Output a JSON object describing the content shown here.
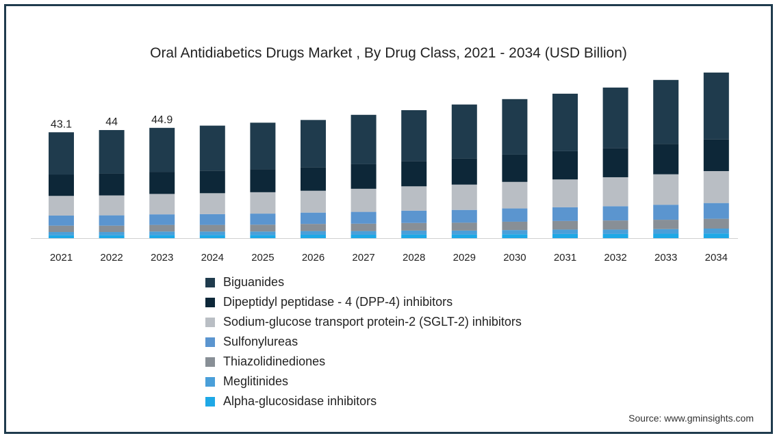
{
  "chart_data": {
    "type": "bar",
    "stacked": true,
    "title": "Oral Antidiabetics Drugs Market , By Drug Class, 2021 - 2034 (USD Billion)",
    "categories": [
      "2021",
      "2022",
      "2023",
      "2024",
      "2025",
      "2026",
      "2027",
      "2028",
      "2029",
      "2030",
      "2031",
      "2032",
      "2033",
      "2034"
    ],
    "totals": [
      43.1,
      44,
      44.9,
      45.8,
      47,
      48.1,
      50.2,
      52.1,
      54.4,
      56.6,
      58.8,
      61.3,
      64.4,
      67.4
    ],
    "total_labels": [
      "43.1",
      "44",
      "44.9",
      "",
      "",
      "",
      "",
      "",
      "",
      "",
      "",
      "",
      "",
      ""
    ],
    "series": [
      {
        "name": "Alpha-glucosidase inhibitors",
        "color": "#1ea8e6",
        "values": [
          1.2,
          1.2,
          1.3,
          1.3,
          1.3,
          1.4,
          1.4,
          1.5,
          1.5,
          1.6,
          1.7,
          1.7,
          1.8,
          1.9
        ]
      },
      {
        "name": "Meglitinides",
        "color": "#4a9fd9",
        "values": [
          1.3,
          1.3,
          1.4,
          1.4,
          1.4,
          1.5,
          1.5,
          1.6,
          1.6,
          1.7,
          1.8,
          1.8,
          1.9,
          2.0
        ]
      },
      {
        "name": "Thiazolidinediones",
        "color": "#888f96",
        "values": [
          2.6,
          2.6,
          2.7,
          2.7,
          2.8,
          2.9,
          3.0,
          3.1,
          3.2,
          3.4,
          3.5,
          3.7,
          3.8,
          4.0
        ]
      },
      {
        "name": "Sulfonylureas",
        "color": "#5b95cf",
        "values": [
          4.1,
          4.2,
          4.3,
          4.4,
          4.5,
          4.6,
          4.8,
          5.0,
          5.2,
          5.4,
          5.6,
          5.8,
          6.1,
          6.4
        ]
      },
      {
        "name": "Sodium-glucose transport protein-2 (SGLT-2) inhibitors",
        "color": "#b9bec4",
        "values": [
          8.0,
          8.1,
          8.3,
          8.5,
          8.7,
          8.9,
          9.4,
          9.9,
          10.3,
          10.8,
          11.3,
          11.8,
          12.4,
          13.0
        ]
      },
      {
        "name": "Dipeptidyl peptidase - 4 (DPP-4) inhibitors",
        "color": "#0d2738",
        "values": [
          8.7,
          8.9,
          9.0,
          9.2,
          9.4,
          9.6,
          10.0,
          10.3,
          10.7,
          11.1,
          11.5,
          11.9,
          12.4,
          12.9
        ]
      },
      {
        "name": "Biguanides",
        "color": "#1f3b4d",
        "values": [
          17.2,
          17.7,
          17.9,
          18.3,
          18.9,
          19.2,
          20.1,
          20.7,
          21.9,
          22.6,
          23.4,
          24.6,
          26.0,
          27.2
        ]
      }
    ]
  },
  "legend_order": [
    6,
    5,
    4,
    3,
    2,
    1,
    0
  ],
  "source": "Source: www.gminsights.com"
}
